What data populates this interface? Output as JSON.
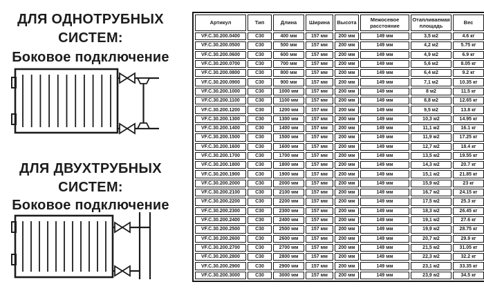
{
  "page": {
    "background": "#ffffff",
    "text_color": "#1c1c1c",
    "border_color": "#161616"
  },
  "sections": [
    {
      "title_line1": "ДЛЯ ОДНОТРУБНЫХ",
      "title_line2": "СИСТЕМ:",
      "subtitle": "Боковое подключение",
      "diagram": "single-pipe-side-connection"
    },
    {
      "title_line1": "ДЛЯ ДВУХТРУБНЫХ",
      "title_line2": "СИСТЕМ:",
      "subtitle": "Боковое подключение",
      "diagram": "two-pipe-side-connection"
    }
  ],
  "table": {
    "headers": [
      "Артикул",
      "Тип",
      "Длина",
      "Ширина",
      "Высота",
      "Межосевое расстояние",
      "Отапливаемая площадь",
      "Вес"
    ],
    "rows": [
      [
        "VF.C.30.200.0400",
        "C30",
        "400 мм",
        "157 мм",
        "200 мм",
        "149 мм",
        "3,5 м2",
        "4.6 кг"
      ],
      [
        "VF.C.30.200.0500",
        "C30",
        "500 мм",
        "157 мм",
        "200 мм",
        "149 мм",
        "4,2 м2",
        "5.75 кг"
      ],
      [
        "VF.C.30.200.0600",
        "C30",
        "600 мм",
        "157 мм",
        "200 мм",
        "149 мм",
        "4,9 м2",
        "6.9 кг"
      ],
      [
        "VF.C.30.200.0700",
        "C30",
        "700 мм",
        "157 мм",
        "200 мм",
        "149 мм",
        "5,6 м2",
        "8.05 кг"
      ],
      [
        "VF.C.30.200.0800",
        "C30",
        "800 мм",
        "157 мм",
        "200 мм",
        "149 мм",
        "6,4 м2",
        "9.2 кг"
      ],
      [
        "VF.C.30.200.0900",
        "C30",
        "900 мм",
        "157 мм",
        "200 мм",
        "149 мм",
        "7,1 м2",
        "10.35 кг"
      ],
      [
        "VF.C.30.200.1000",
        "C30",
        "1000 мм",
        "157 мм",
        "200 мм",
        "149 мм",
        "8 м2",
        "11.5 кг"
      ],
      [
        "VF.C.30.200.1100",
        "C30",
        "1100 мм",
        "157 мм",
        "200 мм",
        "149 мм",
        "8,8 м2",
        "12.65 кг"
      ],
      [
        "VF.C.30.200.1200",
        "C30",
        "1200 мм",
        "157 мм",
        "200 мм",
        "149 мм",
        "9,5 м2",
        "13.8 кг"
      ],
      [
        "VF.C.30.200.1300",
        "C30",
        "1300 мм",
        "157 мм",
        "200 мм",
        "149 мм",
        "10,3 м2",
        "14.95 кг"
      ],
      [
        "VF.C.30.200.1400",
        "C30",
        "1400 мм",
        "157 мм",
        "200 мм",
        "149 мм",
        "11,1 м2",
        "16.1 кг"
      ],
      [
        "VF.C.30.200.1500",
        "C30",
        "1500 мм",
        "157 мм",
        "200 мм",
        "149 мм",
        "11,9 м2",
        "17.25 кг"
      ],
      [
        "VF.C.30.200.1600",
        "C30",
        "1600 мм",
        "157 мм",
        "200 мм",
        "149 мм",
        "12,7 м2",
        "18.4 кг"
      ],
      [
        "VF.C.30.200.1700",
        "C30",
        "1700 мм",
        "157 мм",
        "200 мм",
        "149 мм",
        "13,5 м2",
        "19.55 кг"
      ],
      [
        "VF.C.30.200.1800",
        "C30",
        "1800 мм",
        "157 мм",
        "200 мм",
        "149 мм",
        "14,3 м2",
        "20.7 кг"
      ],
      [
        "VF.C.30.200.1900",
        "C30",
        "1900 мм",
        "157 мм",
        "200 мм",
        "149 мм",
        "15,1 м2",
        "21.85 кг"
      ],
      [
        "VF.C.30.200.2000",
        "C30",
        "2000 мм",
        "157 мм",
        "200 мм",
        "149 мм",
        "15,9 м2",
        "23 кг"
      ],
      [
        "VF.C.30.200.2100",
        "C30",
        "2100 мм",
        "157 мм",
        "200 мм",
        "149 мм",
        "16,7 м2",
        "24.15 кг"
      ],
      [
        "VF.C.30.200.2200",
        "C30",
        "2200 мм",
        "157 мм",
        "200 мм",
        "149 мм",
        "17,5 м2",
        "25.3 кг"
      ],
      [
        "VF.C.30.200.2300",
        "C30",
        "2300 мм",
        "157 мм",
        "200 мм",
        "149 мм",
        "18,3 м2",
        "26.45 кг"
      ],
      [
        "VF.C.30.200.2400",
        "C30",
        "2400 мм",
        "157 мм",
        "200 мм",
        "149 мм",
        "19,1 м2",
        "27.6 кг"
      ],
      [
        "VF.C.30.200.2500",
        "C30",
        "2500 мм",
        "157 мм",
        "200 мм",
        "149 мм",
        "19,9 м2",
        "28.75 кг"
      ],
      [
        "VF.C.30.200.2600",
        "C30",
        "2600 мм",
        "157 мм",
        "200 мм",
        "149 мм",
        "20,7 м2",
        "29.9 кг"
      ],
      [
        "VF.C.30.200.2700",
        "C30",
        "2700 мм",
        "157 мм",
        "200 мм",
        "149 мм",
        "21,5 м2",
        "31.05 кг"
      ],
      [
        "VF.C.30.200.2800",
        "C30",
        "2800 мм",
        "157 мм",
        "200 мм",
        "149 мм",
        "22,3 м2",
        "32.2 кг"
      ],
      [
        "VF.C.30.200.2900",
        "C30",
        "2900 мм",
        "157 мм",
        "200 мм",
        "149 мм",
        "23,1 м2",
        "33.35 кг"
      ],
      [
        "VF.C.30.200.3000",
        "C30",
        "3000 мм",
        "157 мм",
        "200 мм",
        "149 мм",
        "23,9 м2",
        "34.5 кг"
      ]
    ]
  }
}
